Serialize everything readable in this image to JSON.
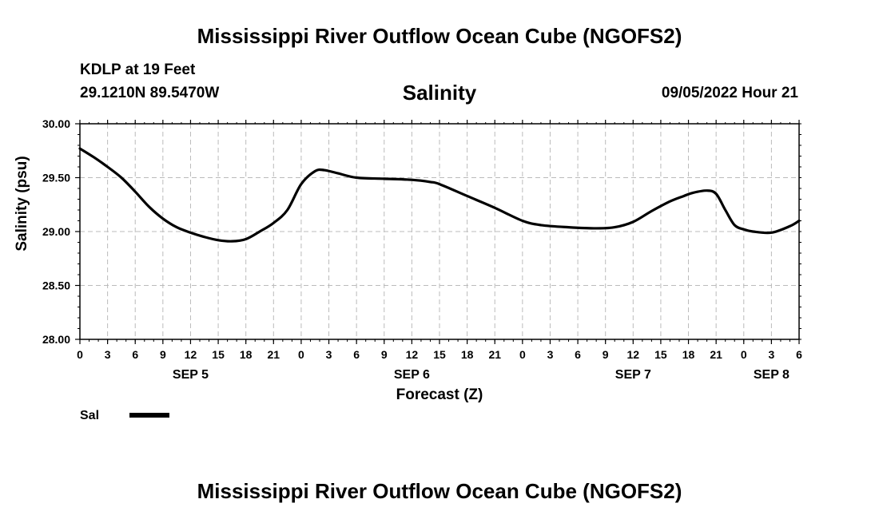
{
  "header": {
    "title": "Mississippi River Outflow Ocean Cube (NGOFS2)",
    "station": "KDLP at 19 Feet",
    "coordinates": "29.1210N  89.5470W",
    "variable": "Salinity",
    "timestamp": "09/05/2022 Hour 21"
  },
  "footer": {
    "title": "Mississippi River Outflow Ocean Cube (NGOFS2)"
  },
  "colors": {
    "line": "#000000",
    "grid": "#bbbbbb"
  },
  "chart_data": {
    "type": "line",
    "title": "Salinity",
    "xlabel": "Forecast (Z)",
    "ylabel": "Salinity (psu)",
    "xlim": [
      0,
      78
    ],
    "ylim": [
      28.0,
      30.0
    ],
    "yticks": [
      "28.00",
      "28.50",
      "29.00",
      "29.50",
      "30.00"
    ],
    "xtick_step_hours": 3,
    "xtick_labels": [
      "0",
      "3",
      "6",
      "9",
      "12",
      "15",
      "18",
      "21",
      "0",
      "3",
      "6",
      "9",
      "12",
      "15",
      "18",
      "21",
      "0",
      "3",
      "6",
      "9",
      "12",
      "15",
      "18",
      "21",
      "0",
      "3",
      "6"
    ],
    "day_labels": [
      {
        "hour": 12,
        "label": "SEP 5"
      },
      {
        "hour": 36,
        "label": "SEP 6"
      },
      {
        "hour": 60,
        "label": "SEP 7"
      },
      {
        "hour": 75,
        "label": "SEP 8"
      }
    ],
    "grid": true,
    "legend": [
      {
        "name": "Sal",
        "position": "bottom-left"
      }
    ],
    "series": [
      {
        "name": "Sal",
        "x": [
          0,
          1.5,
          3,
          4.5,
          6,
          7.5,
          9,
          10.5,
          12,
          13.5,
          15,
          16.5,
          18,
          19.5,
          21,
          22.5,
          24,
          25.5,
          26.5,
          28,
          30,
          33,
          36,
          38,
          39,
          42,
          45,
          48,
          50,
          53,
          56,
          58,
          60,
          62,
          64,
          65.5,
          66.5,
          68,
          69,
          70,
          71,
          72,
          73,
          75,
          77,
          78
        ],
        "y": [
          29.77,
          29.69,
          29.6,
          29.5,
          29.37,
          29.23,
          29.12,
          29.04,
          28.99,
          28.95,
          28.92,
          28.91,
          28.93,
          29.0,
          29.08,
          29.2,
          29.44,
          29.56,
          29.57,
          29.54,
          29.5,
          29.49,
          29.48,
          29.46,
          29.44,
          29.33,
          29.22,
          29.1,
          29.06,
          29.04,
          29.03,
          29.04,
          29.09,
          29.19,
          29.28,
          29.33,
          29.36,
          29.38,
          29.35,
          29.2,
          29.06,
          29.02,
          29.0,
          28.99,
          29.05,
          29.1
        ]
      }
    ]
  }
}
